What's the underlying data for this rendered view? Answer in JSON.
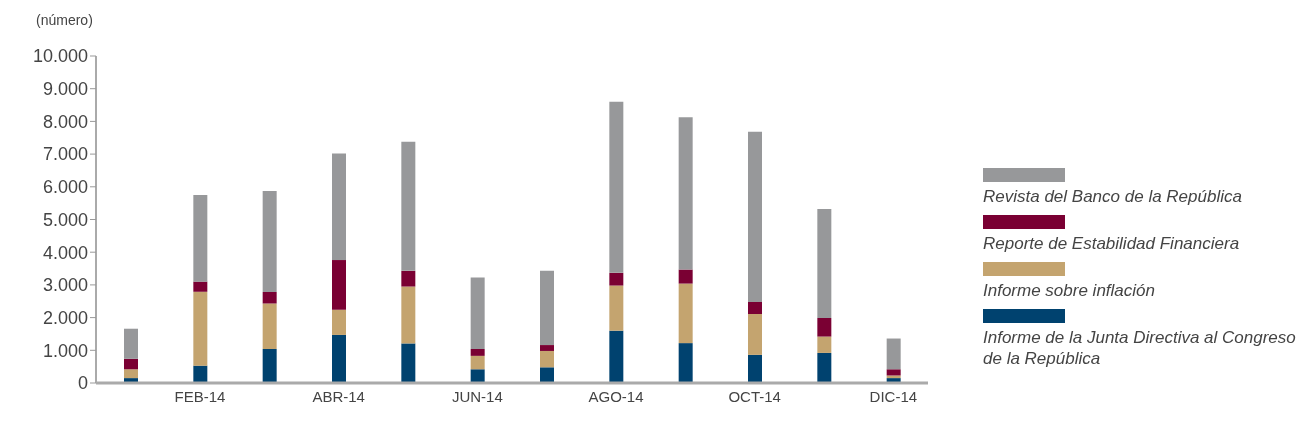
{
  "chart_data": {
    "type": "bar",
    "stacked": true,
    "ylabel": "(número)",
    "categories": [
      null,
      "FEB-14",
      null,
      "ABR-14",
      null,
      "JUN-14",
      null,
      "AGO-14",
      null,
      "OCT-14",
      null,
      "DIC-14"
    ],
    "series": [
      {
        "name": "Informe de la Junta Directiva al Congreso de la República",
        "color": "#00426f",
        "values": [
          150,
          530,
          1040,
          1470,
          1210,
          420,
          480,
          1600,
          1220,
          860,
          920,
          150
        ]
      },
      {
        "name": "Informe sobre inflación",
        "color": "#c4a46f",
        "values": [
          270,
          2260,
          1390,
          770,
          1740,
          410,
          500,
          1380,
          1820,
          1250,
          500,
          80
        ]
      },
      {
        "name": "Reporte de Estabilidad Financiera",
        "color": "#7a0033",
        "values": [
          320,
          310,
          350,
          1520,
          480,
          210,
          180,
          390,
          430,
          370,
          570,
          190
        ]
      },
      {
        "name": "Revista del Banco de la República",
        "color": "#97989a",
        "values": [
          920,
          2650,
          3090,
          3260,
          3950,
          2190,
          2270,
          5230,
          4660,
          5200,
          3330,
          940
        ]
      }
    ],
    "ylim": [
      0,
      10000
    ],
    "yticks": [
      0,
      {
        "value": 1000,
        "label": "1.000"
      },
      {
        "value": 2000,
        "label": "2.000"
      },
      {
        "value": 3000,
        "label": "3.000"
      },
      {
        "value": 4000,
        "label": "4.000"
      },
      {
        "value": 5000,
        "label": "5.000"
      },
      {
        "value": 6000,
        "label": "6.000"
      },
      {
        "value": 7000,
        "label": "7.000"
      },
      {
        "value": 8000,
        "label": "8.000"
      },
      {
        "value": 9000,
        "label": "9.000"
      },
      {
        "value": 10000,
        "label": "10.000"
      }
    ],
    "grid": false,
    "legend": "right"
  }
}
